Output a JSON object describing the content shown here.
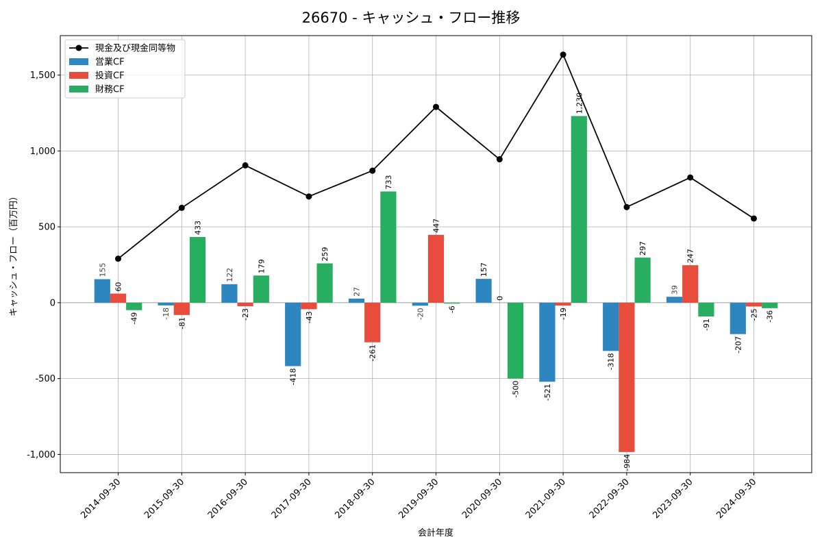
{
  "chart_data": {
    "type": "bar",
    "title": "26670 - キャッシュ・フロー推移",
    "xlabel": "会計年度",
    "ylabel": "キャッシュ・フロー（百万円）",
    "ylim": [
      -1120,
      1760
    ],
    "yticks": [
      -1000,
      -500,
      0,
      500,
      1000,
      1500
    ],
    "ytick_labels": [
      "-1,000",
      "-500",
      "0",
      "500",
      "1,000",
      "1,500"
    ],
    "grid": true,
    "legend_position": "top-left",
    "categories": [
      "2014-09-30",
      "2015-09-30",
      "2016-09-30",
      "2017-09-30",
      "2018-09-30",
      "2019-09-30",
      "2020-09-30",
      "2021-09-30",
      "2022-09-30",
      "2023-09-30",
      "2024-09-30"
    ],
    "series": [
      {
        "name": "営業CF",
        "kind": "bar",
        "color": "#2e86c1",
        "values": [
          155,
          -18,
          122,
          -418,
          27,
          -20,
          157,
          -521,
          -318,
          39,
          -207
        ],
        "labels": [
          "155",
          "-18",
          "122",
          "-418",
          "27",
          "-20",
          "157",
          "-521",
          "-318",
          "39",
          "-207"
        ]
      },
      {
        "name": "投資CF",
        "kind": "bar",
        "color": "#e74c3c",
        "values": [
          60,
          -81,
          -23,
          -43,
          -261,
          447,
          0,
          -19,
          -984,
          247,
          -25
        ],
        "labels": [
          "60",
          "-81",
          "-23",
          "-43",
          "-261",
          "447",
          "0",
          "-19",
          "-984",
          "247",
          "-25"
        ]
      },
      {
        "name": "財務CF",
        "kind": "bar",
        "color": "#27ae60",
        "values": [
          -49,
          433,
          179,
          259,
          733,
          -6,
          -500,
          1230,
          297,
          -91,
          -36
        ],
        "labels": [
          "-49",
          "433",
          "179",
          "259",
          "733",
          "-6",
          "-500",
          "1,230",
          "297",
          "-91",
          "-36"
        ]
      },
      {
        "name": "現金及び現金同等物",
        "kind": "line",
        "color": "#000000",
        "values": [
          290,
          625,
          905,
          700,
          870,
          1290,
          945,
          1635,
          630,
          825,
          555
        ]
      }
    ]
  }
}
